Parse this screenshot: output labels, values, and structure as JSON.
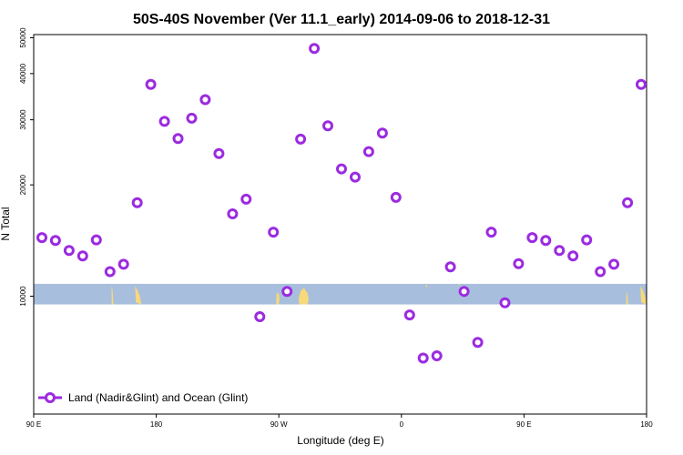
{
  "chart_data": {
    "type": "scatter",
    "title": "50S-40S November (Ver 11.1_early)   2014-09-06 to 2018-12-31",
    "xlabel": "Longitude (deg E)",
    "ylabel": "N Total",
    "xlim": [
      90,
      540
    ],
    "ylim": [
      4800,
      51000
    ],
    "y_scale": "log",
    "grid": false,
    "x_ticks": [
      {
        "value": 90,
        "label": "90 E"
      },
      {
        "value": 180,
        "label": "180"
      },
      {
        "value": 270,
        "label": "90 W"
      },
      {
        "value": 360,
        "label": "0"
      },
      {
        "value": 450,
        "label": "90 E"
      },
      {
        "value": 540,
        "label": "180"
      }
    ],
    "y_ticks": [
      {
        "value": 10000,
        "label": "10000"
      },
      {
        "value": 20000,
        "label": "20000"
      },
      {
        "value": 30000,
        "label": "30000"
      },
      {
        "value": 40000,
        "label": "40000"
      },
      {
        "value": 50000,
        "label": "50000"
      }
    ],
    "series": [
      {
        "name": "Land (Nadir&Glint) and Ocean (Glint)",
        "color": "#9b2be0",
        "x": [
          96,
          106,
          116,
          126,
          136,
          146,
          156,
          166,
          176,
          186,
          196,
          206,
          216,
          226,
          236,
          246,
          256,
          266,
          276,
          286,
          296,
          306,
          316,
          326,
          336,
          346,
          356,
          366,
          376,
          386,
          396,
          406,
          416,
          426,
          436,
          446,
          456,
          466,
          476,
          486,
          496,
          506,
          516,
          526,
          536
        ],
        "y": [
          14400,
          14150,
          13300,
          12850,
          14200,
          11650,
          12200,
          17900,
          37400,
          29700,
          26700,
          30300,
          34000,
          24300,
          16700,
          18300,
          8800,
          14900,
          10300,
          26600,
          46800,
          28900,
          22100,
          21000,
          24600,
          27600,
          18500,
          8900,
          6800,
          6900,
          12000,
          10300,
          7500,
          14900,
          9600,
          12250,
          14400,
          14150,
          13300,
          12850,
          14200,
          11650,
          12200,
          17900,
          37400
        ]
      }
    ],
    "ocean_band": {
      "y_range": [
        9500,
        10800
      ],
      "color": "#a8bedd"
    },
    "land_color": "#f7d87a",
    "legend": {
      "location": "bottom-left",
      "entries": [
        "Land (Nadir&Glint) and Ocean (Glint)"
      ]
    }
  }
}
